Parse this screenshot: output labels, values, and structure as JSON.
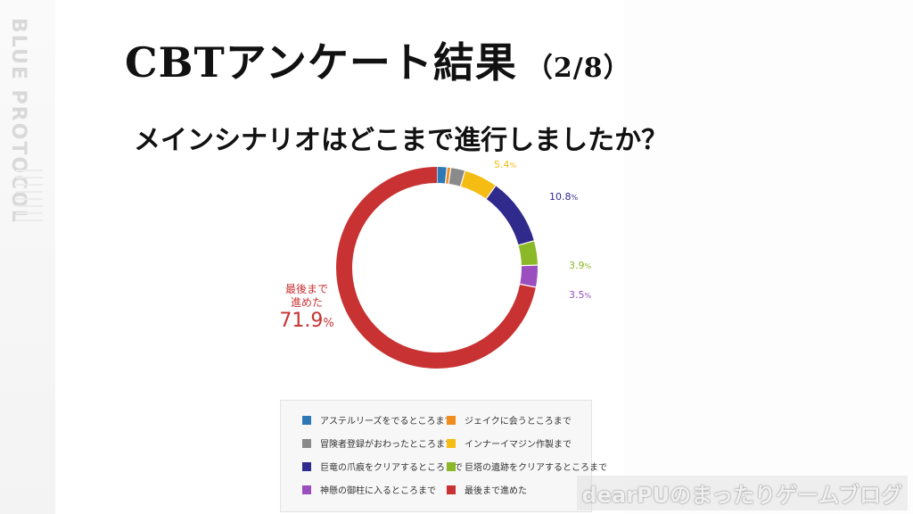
{
  "brand": {
    "logo_text": "BLUE PROTOCOL"
  },
  "title": {
    "main": "CBTアンケート結果",
    "page_number": "（2/8）"
  },
  "question": "メインシナリオはどこまで進行しましたか？",
  "watermark": "dearPUのまったりゲームブログ",
  "chart_data": {
    "type": "pie",
    "style": "donut",
    "title": "",
    "categories": [
      "アステルリーズをでるところまで",
      "ジェイクに会うところまで",
      "冒険者登録がおわったところまで",
      "インナーイマジン作製まで",
      "巨竜の爪痕をクリアするところまで",
      "巨塔の遺跡をクリアするところまで",
      "神懸の御柱に入るところまで",
      "最後まで進めた"
    ],
    "values": [
      1.6,
      0.6,
      2.3,
      5.4,
      10.8,
      3.9,
      3.5,
      71.9
    ],
    "value_labels": [
      "1.6",
      "0.6",
      "2.3",
      "5.4",
      "10.8",
      "3.9",
      "3.5",
      "71.9"
    ],
    "unit": "%",
    "colors": [
      "#2e79b5",
      "#f08c1e",
      "#8a8a8a",
      "#f5bd13",
      "#2f2a8c",
      "#8ab827",
      "#9b4fbf",
      "#c83232"
    ],
    "big_label": {
      "line1": "最後まで",
      "line2": "進めた",
      "value": "71.9"
    },
    "legend_position": "bottom"
  }
}
